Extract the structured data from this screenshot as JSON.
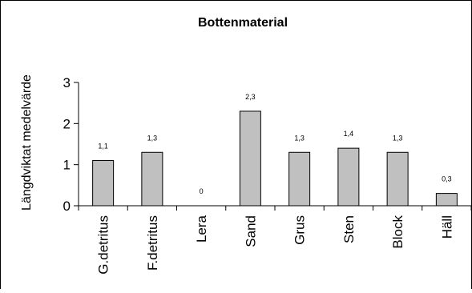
{
  "chart_data": {
    "type": "bar",
    "title": "Bottenmaterial",
    "xlabel": "",
    "ylabel": "Längdviktat medelvärde",
    "categories": [
      "G.detritus",
      "F.detritus",
      "Lera",
      "Sand",
      "Grus",
      "Sten",
      "Block",
      "Häll"
    ],
    "values": [
      1.1,
      1.3,
      0,
      2.3,
      1.3,
      1.4,
      1.3,
      0.3
    ],
    "data_labels": [
      "1,1",
      "1,3",
      "0",
      "2,3",
      "1,3",
      "1,4",
      "1,3",
      "0,3"
    ],
    "yticks": [
      "0",
      "1",
      "2",
      "3"
    ],
    "ytick_values": [
      0,
      1,
      2,
      3
    ],
    "ylim": [
      0,
      3
    ],
    "grid": false,
    "legend": "none",
    "bar_color": "#c0c0c0",
    "bar_edge_color": "#000000"
  }
}
